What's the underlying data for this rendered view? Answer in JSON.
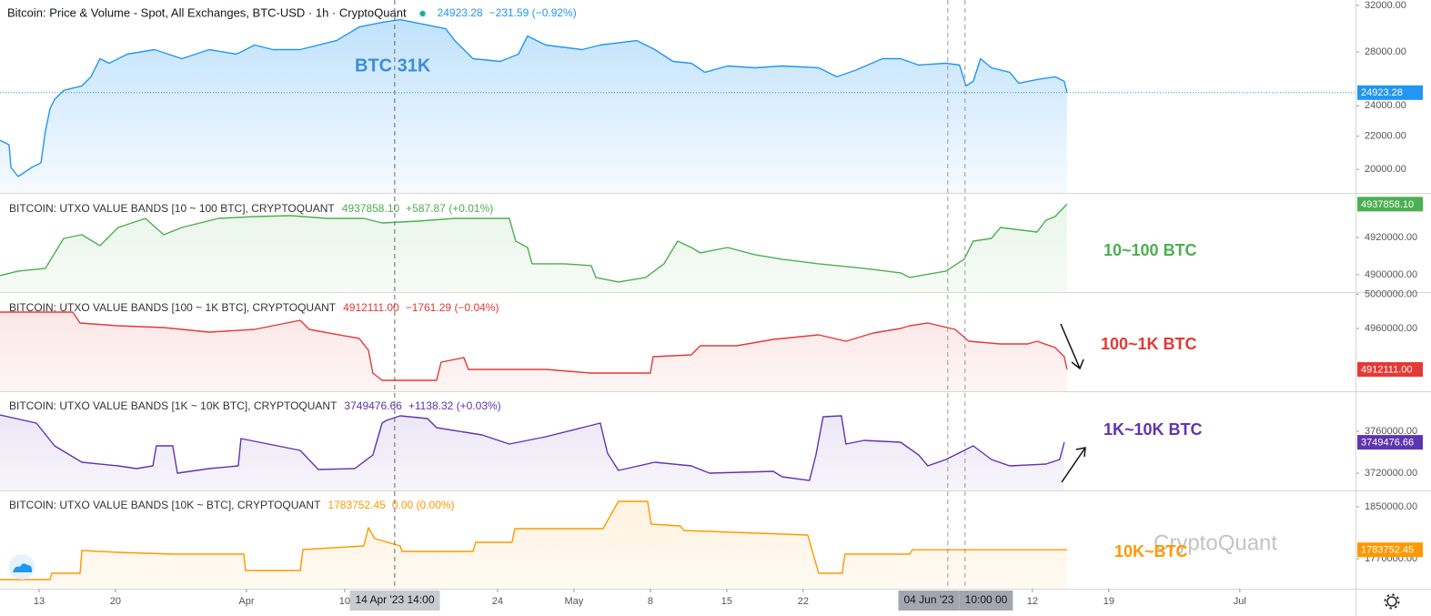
{
  "x_axis": {
    "xlim": [
      8.42,
      132.6
    ],
    "xticks": [
      {
        "value": 12,
        "label": "13"
      },
      {
        "value": 19,
        "label": "20"
      },
      {
        "value": 31,
        "label": "Apr"
      },
      {
        "value": 40,
        "label": "10"
      },
      {
        "value": 54,
        "label": "24"
      },
      {
        "value": 61,
        "label": "May"
      },
      {
        "value": 68,
        "label": "8"
      },
      {
        "value": 75,
        "label": "15"
      },
      {
        "value": 82,
        "label": "22"
      },
      {
        "value": 103,
        "label": "12"
      },
      {
        "value": 110,
        "label": "19"
      },
      {
        "value": 122,
        "label": "Jul"
      }
    ],
    "crosshair_x": [
      44.58,
      95.25,
      96.83
    ],
    "crosshair_labels": [
      "14 Apr '23  14:00",
      "04 Jun '23",
      "10:00  00"
    ]
  },
  "watermark": "CryptoQuant",
  "chart_data": [
    {
      "type": "line",
      "title": "Bitcoin: Price & Volume - Spot, All Exchanges, BTC-USD · 1h · CryptoQuant",
      "last_value": "24923.28",
      "change": "−231.59 (−0.92%)",
      "annotation": "BTC 31K",
      "color": "#2196f3",
      "log": true,
      "x": [
        8.42,
        9.25,
        9.42,
        10.08,
        11.33,
        12.17,
        12.58,
        13.0,
        13.42,
        14.25,
        15.92,
        16.75,
        17.58,
        18.42,
        20.08,
        22.58,
        25.08,
        27.58,
        30.08,
        31.75,
        33.42,
        35.92,
        39.25,
        41.33,
        43.42,
        45.08,
        47.58,
        49.25,
        50.08,
        51.75,
        54.25,
        55.92,
        56.75,
        58.42,
        61.75,
        63.42,
        66.75,
        68.42,
        70.08,
        71.75,
        73.0,
        75.08,
        77.58,
        80.08,
        83.42,
        85.08,
        86.75,
        89.25,
        90.92,
        92.58,
        95.08,
        96.33,
        96.92,
        97.58,
        98.25,
        99.25,
        100.92,
        101.75,
        103.42,
        105.08,
        105.92,
        106.17
      ],
      "values": [
        21744,
        21463,
        20115,
        19598,
        20115,
        20378,
        22318,
        23813,
        24440,
        25084,
        25412,
        26081,
        27470,
        27115,
        27831,
        28193,
        27470,
        28193,
        27831,
        28563,
        28193,
        28193,
        28935,
        30086,
        30480,
        30717,
        30242,
        29930,
        28935,
        27470,
        27256,
        27831,
        29314,
        28563,
        28193,
        28563,
        28935,
        28193,
        27256,
        27115,
        26421,
        26906,
        26766,
        26906,
        26766,
        26081,
        26558,
        27470,
        27470,
        26976,
        27115,
        26976,
        25412,
        25743,
        27470,
        26766,
        26421,
        25610,
        25877,
        26081,
        25743,
        24923.28
      ],
      "ylim": [
        18700,
        32500
      ],
      "yticks": [
        {
          "value": 32000,
          "label": "32000.00"
        },
        {
          "value": 28000,
          "label": "28000.00"
        },
        {
          "value": 24000,
          "label": "24000.00"
        },
        {
          "value": 22000,
          "label": "22000.00"
        },
        {
          "value": 20000,
          "label": "20000.00"
        }
      ]
    },
    {
      "type": "line",
      "title": "BITCOIN: UTXO VALUE BANDS [10 ~ 100 BTC], CRYPTOQUANT",
      "last_value": "4937858.10",
      "change": "+587.87 (+0.01%)",
      "annotation": "10~100 BTC",
      "color": "#4caf50",
      "x": [
        8.42,
        10.08,
        12.58,
        14.25,
        15.92,
        17.58,
        19.25,
        21.75,
        23.42,
        25.08,
        28.42,
        31.75,
        35.08,
        38.42,
        41.75,
        43.42,
        46.75,
        50.08,
        53.42,
        55.08,
        55.67,
        56.75,
        57.17,
        60.08,
        62.58,
        63.0,
        65.08,
        67.58,
        69.25,
        70.5,
        71.75,
        72.58,
        75.08,
        77.58,
        80.08,
        83.42,
        87.58,
        90.92,
        91.75,
        95.08,
        96.75,
        97.58,
        99.25,
        100.08,
        103.42,
        104.25,
        105.08,
        106.17
      ],
      "values": [
        4899512,
        4901951,
        4903415,
        4919512,
        4921463,
        4915610,
        4925366,
        4930244,
        4921463,
        4925366,
        4930244,
        4931220,
        4931707,
        4930244,
        4930244,
        4927805,
        4928780,
        4930244,
        4930244,
        4930244,
        4918049,
        4914634,
        4905854,
        4905854,
        4904878,
        4898537,
        4896098,
        4898537,
        4905854,
        4918049,
        4914634,
        4911707,
        4914634,
        4910732,
        4908293,
        4905854,
        4903415,
        4900976,
        4898537,
        4901951,
        4908293,
        4918049,
        4919512,
        4925366,
        4922927,
        4929268,
        4931220,
        4937858.1
      ],
      "ylim": [
        4890700,
        4943400
      ],
      "yticks": [
        {
          "value": 4920000,
          "label": "4920000.00"
        },
        {
          "value": 4900000,
          "label": "4900000.00"
        }
      ]
    },
    {
      "type": "line",
      "title": "BITCOIN: UTXO VALUE BANDS [100 ~ 1K BTC], CRYPTOQUANT",
      "last_value": "4912111.00",
      "change": "−1761.29 (−0.04%)",
      "annotation": "100~1K BTC",
      "color": "#e53935",
      "x": [
        8.42,
        15.08,
        15.75,
        19.25,
        23.42,
        27.58,
        31.75,
        35.92,
        36.75,
        41.33,
        42.17,
        42.58,
        43.42,
        48.42,
        48.83,
        50.92,
        51.33,
        58.42,
        62.58,
        68.0,
        68.25,
        71.75,
        72.58,
        75.92,
        79.25,
        83.42,
        85.92,
        88.42,
        90.92,
        91.75,
        93.42,
        95.92,
        97.17,
        100.08,
        102.58,
        103.42,
        105.08,
        105.92,
        106.17
      ],
      "values": [
        4979152,
        4979152,
        4966384,
        4963192,
        4961064,
        4955744,
        4958936,
        4969576,
        4958936,
        4948296,
        4934464,
        4907864,
        4899352,
        4899352,
        4920632,
        4925952,
        4912120,
        4912120,
        4907864,
        4907864,
        4927016,
        4929144,
        4939784,
        4939784,
        4947232,
        4952552,
        4945104,
        4954680,
        4960000,
        4963192,
        4966384,
        4958936,
        4945104,
        4941912,
        4941912,
        4945104,
        4937656,
        4927016,
        4912111
      ],
      "ylim": [
        4886600,
        5001500
      ],
      "yticks": [
        {
          "value": 5000000,
          "label": "5000000.00"
        },
        {
          "value": 4960000,
          "label": "4960000.00"
        }
      ]
    },
    {
      "type": "line",
      "title": "BITCOIN: UTXO VALUE BANDS [1K ~ 10K BTC], CRYPTOQUANT",
      "last_value": "3749476.66",
      "change": "+1138.32 (+0.03%)",
      "annotation": "1K~10K BTC",
      "color": "#5e35b1",
      "x": [
        8.42,
        11.75,
        13.42,
        15.92,
        19.25,
        20.92,
        22.42,
        22.75,
        24.25,
        24.67,
        27.58,
        30.25,
        30.5,
        35.92,
        37.58,
        40.92,
        42.58,
        43.42,
        43.83,
        45.08,
        47.58,
        48.42,
        52.58,
        55.08,
        58.42,
        61.75,
        63.42,
        64.08,
        65.08,
        68.42,
        71.75,
        73.42,
        79.25,
        80.08,
        82.58,
        83.17,
        83.83,
        85.5,
        85.92,
        87.58,
        90.92,
        92.58,
        93.42,
        95.08,
        97.58,
        99.25,
        100.92,
        104.25,
        105.5,
        105.92
      ],
      "values": [
        3775660,
        3767830,
        3746080,
        3730420,
        3726940,
        3724330,
        3726940,
        3746080,
        3746080,
        3719980,
        3724330,
        3726940,
        3753040,
        3741730,
        3723460,
        3724330,
        3737380,
        3767830,
        3770440,
        3774790,
        3772180,
        3763480,
        3756520,
        3747820,
        3754780,
        3763480,
        3767830,
        3739120,
        3722590,
        3730420,
        3726940,
        3719980,
        3721720,
        3716500,
        3713020,
        3737380,
        3773920,
        3774790,
        3747820,
        3751300,
        3749560,
        3737380,
        3726940,
        3733030,
        3746080,
        3733030,
        3726940,
        3728680,
        3733030,
        3749476.66
      ],
      "ylim": [
        3703500,
        3797400
      ],
      "yticks": [
        {
          "value": 3760000,
          "label": "3760000.00"
        },
        {
          "value": 3720000,
          "label": "3720000.00"
        }
      ]
    },
    {
      "type": "line",
      "title": "BITCOIN: UTXO VALUE BANDS [10K ~ BTC], CRYPTOQUANT",
      "last_value": "1783752.45",
      "change": "0.00 (0.00%)",
      "annotation": "10K~BTC",
      "color": "#ff9800",
      "x": [
        8.42,
        13.0,
        13.17,
        15.75,
        15.92,
        19.25,
        24.25,
        30.75,
        30.92,
        35.92,
        36.17,
        41.75,
        42.17,
        42.75,
        45.08,
        45.25,
        51.75,
        52.0,
        55.33,
        55.58,
        63.67,
        65.08,
        67.75,
        68.08,
        70.75,
        71.08,
        82.42,
        83.42,
        85.58,
        85.83,
        91.75,
        92.0,
        106.17
      ],
      "values": [
        1737680,
        1737680,
        1747508,
        1747508,
        1782608,
        1779800,
        1776992,
        1776992,
        1751720,
        1751720,
        1784012,
        1789628,
        1817708,
        1800860,
        1789628,
        1781204,
        1781204,
        1795244,
        1795244,
        1816304,
        1816304,
        1858424,
        1858424,
        1823324,
        1820516,
        1813496,
        1806476,
        1747508,
        1747508,
        1776992,
        1776992,
        1783752.45,
        1783752.45
      ],
      "ylim": [
        1723700,
        1873900
      ],
      "yticks": [
        {
          "value": 1850000,
          "label": "1850000.00"
        },
        {
          "value": 1770000,
          "label": "1770000.00"
        }
      ]
    }
  ]
}
